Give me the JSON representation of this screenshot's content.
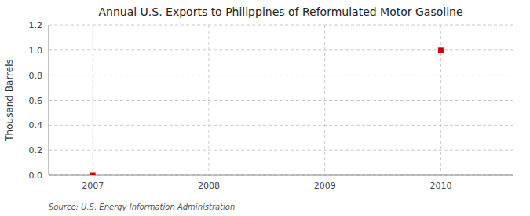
{
  "chart_data": {
    "type": "scatter",
    "title": "Annual U.S. Exports to Philippines of Reformulated Motor Gasoline",
    "y_label": "Thousand Barrels",
    "annotations": [
      "Source: U.S. Energy Information Administration"
    ],
    "x": [
      2007,
      2010
    ],
    "values": [
      0,
      1.0
    ],
    "color": "#cc0000",
    "marker": "square",
    "xlim": [
      2006.62,
      2010.62
    ],
    "xticks": [
      2007,
      2008,
      2009,
      2010
    ],
    "ylim": [
      0.0,
      1.2
    ],
    "yticks": [
      {
        "value": 0,
        "label": "0.0"
      },
      0.2,
      0.4,
      0.6,
      0.8,
      {
        "value": 1,
        "label": "1.0"
      },
      1.2
    ],
    "grid": true
  }
}
